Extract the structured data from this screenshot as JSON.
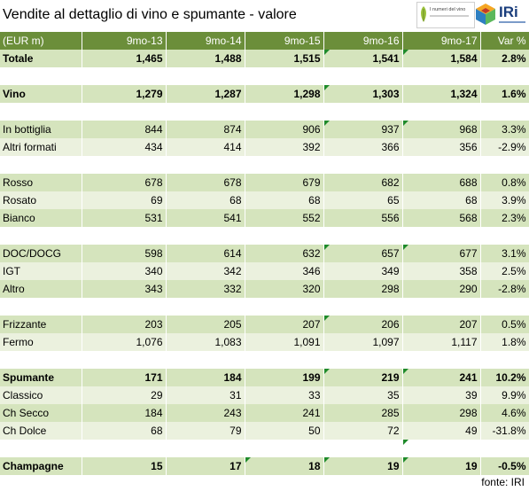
{
  "title": "Vendite al dettaglio di vino e spumante - valore",
  "logos": {
    "brand_small": "I numeri del vino",
    "brand_big": "IRi"
  },
  "header": [
    "(EUR m)",
    "9mo-13",
    "9mo-14",
    "9mo-15",
    "9mo-16",
    "9mo-17",
    "Var %"
  ],
  "rows": [
    {
      "type": "g",
      "bold": true,
      "cells": [
        "Totale",
        "1,465",
        "1,488",
        "1,515",
        "1,541",
        "1,584",
        "2.8%"
      ]
    },
    {
      "type": "w",
      "cells": [
        "",
        "",
        "",
        "",
        "",
        "",
        ""
      ]
    },
    {
      "type": "g",
      "bold": true,
      "cells": [
        "Vino",
        "1,279",
        "1,287",
        "1,298",
        "1,303",
        "1,324",
        "1.6%"
      ]
    },
    {
      "type": "w",
      "cells": [
        "",
        "",
        "",
        "",
        "",
        "",
        ""
      ]
    },
    {
      "type": "g",
      "cells": [
        "In bottiglia",
        "844",
        "874",
        "906",
        "937",
        "968",
        "3.3%"
      ]
    },
    {
      "type": "l",
      "cells": [
        "Altri formati",
        "434",
        "414",
        "392",
        "366",
        "356",
        "-2.9%"
      ]
    },
    {
      "type": "w",
      "cells": [
        "",
        "",
        "",
        "",
        "",
        "",
        ""
      ]
    },
    {
      "type": "g",
      "cells": [
        "Rosso",
        "678",
        "678",
        "679",
        "682",
        "688",
        "0.8%"
      ]
    },
    {
      "type": "l",
      "cells": [
        "Rosato",
        "69",
        "68",
        "68",
        "65",
        "68",
        "3.9%"
      ]
    },
    {
      "type": "g",
      "cells": [
        "Bianco",
        "531",
        "541",
        "552",
        "556",
        "568",
        "2.3%"
      ]
    },
    {
      "type": "w",
      "cells": [
        "",
        "",
        "",
        "",
        "",
        "",
        ""
      ]
    },
    {
      "type": "g",
      "cells": [
        "DOC/DOCG",
        "598",
        "614",
        "632",
        "657",
        "677",
        "3.1%"
      ]
    },
    {
      "type": "l",
      "cells": [
        "IGT",
        "340",
        "342",
        "346",
        "349",
        "358",
        "2.5%"
      ]
    },
    {
      "type": "g",
      "cells": [
        "Altro",
        "343",
        "332",
        "320",
        "298",
        "290",
        "-2.8%"
      ]
    },
    {
      "type": "w",
      "cells": [
        "",
        "",
        "",
        "",
        "",
        "",
        ""
      ]
    },
    {
      "type": "g",
      "cells": [
        "Frizzante",
        "203",
        "205",
        "207",
        "206",
        "207",
        "0.5%"
      ]
    },
    {
      "type": "l",
      "cells": [
        "Fermo",
        "1,076",
        "1,083",
        "1,091",
        "1,097",
        "1,117",
        "1.8%"
      ]
    },
    {
      "type": "w",
      "cells": [
        "",
        "",
        "",
        "",
        "",
        "",
        ""
      ]
    },
    {
      "type": "g",
      "bold": true,
      "cells": [
        "Spumante",
        "171",
        "184",
        "199",
        "219",
        "241",
        "10.2%"
      ]
    },
    {
      "type": "l",
      "cells": [
        "Classico",
        "29",
        "31",
        "33",
        "35",
        "39",
        "9.9%"
      ]
    },
    {
      "type": "g",
      "cells": [
        "Ch Secco",
        "184",
        "243",
        "241",
        "285",
        "298",
        "4.6%"
      ]
    },
    {
      "type": "l",
      "cells": [
        "Ch Dolce",
        "68",
        "79",
        "50",
        "72",
        "49",
        "-31.8%"
      ]
    },
    {
      "type": "w",
      "cells": [
        "",
        "",
        "",
        "",
        "",
        "",
        ""
      ]
    },
    {
      "type": "g",
      "bold": true,
      "cells": [
        "Champagne",
        "15",
        "17",
        "18",
        "19",
        "19",
        "-0.5%"
      ]
    }
  ],
  "source": "fonte: IRI",
  "colors": {
    "header_bg": "#6b8e3a",
    "row_green": "#d5e4bd",
    "row_light": "#ebf1de",
    "marker": "#1e8a2a"
  },
  "marker_cells": [
    [
      0,
      4
    ],
    [
      0,
      5
    ],
    [
      2,
      4
    ],
    [
      4,
      4
    ],
    [
      4,
      5
    ],
    [
      11,
      4
    ],
    [
      11,
      5
    ],
    [
      15,
      4
    ],
    [
      18,
      4
    ],
    [
      18,
      5
    ],
    [
      22,
      5
    ],
    [
      23,
      3
    ],
    [
      23,
      4
    ],
    [
      23,
      5
    ]
  ]
}
